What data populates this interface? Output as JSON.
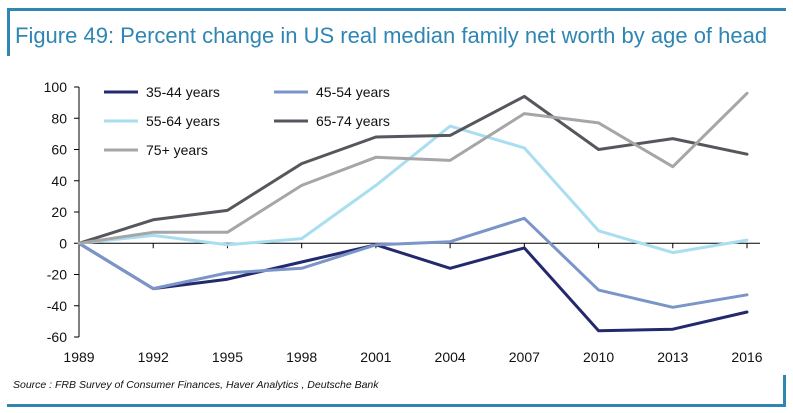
{
  "title": "Figure 49: Percent change in US real median family net worth by age of head",
  "source": "Source : FRB Survey of Consumer Finances, Haver Analytics , Deutsche Bank",
  "chart_data": {
    "type": "line",
    "title": "Figure 49: Percent change in US real median family net worth by age of head",
    "xlabel": "",
    "ylabel": "",
    "x": [
      1989,
      1992,
      1995,
      1998,
      2001,
      2004,
      2007,
      2010,
      2013,
      2016
    ],
    "ylim": [
      -60,
      100
    ],
    "yticks": [
      -60,
      -40,
      -20,
      0,
      20,
      40,
      60,
      80,
      100
    ],
    "grid": false,
    "legend_position": "top-left",
    "series": [
      {
        "name": "35-44 years",
        "color": "#24296e",
        "values": [
          0,
          -29,
          -23,
          -12,
          -1,
          -16,
          -3,
          -56,
          -55,
          -44
        ]
      },
      {
        "name": "45-54 years",
        "color": "#7b95c8",
        "values": [
          0,
          -29,
          -19,
          -16,
          -1,
          1,
          16,
          -30,
          -41,
          -33
        ]
      },
      {
        "name": "55-64 years",
        "color": "#a9def0",
        "values": [
          0,
          5,
          -1,
          3,
          37,
          75,
          61,
          8,
          -6,
          2
        ]
      },
      {
        "name": "65-74 years",
        "color": "#55575c",
        "values": [
          0,
          15,
          21,
          51,
          68,
          69,
          94,
          60,
          67,
          57
        ]
      },
      {
        "name": "75+ years",
        "color": "#a6a6a8",
        "values": [
          0,
          7,
          7,
          37,
          55,
          53,
          83,
          77,
          49,
          96
        ]
      }
    ]
  }
}
